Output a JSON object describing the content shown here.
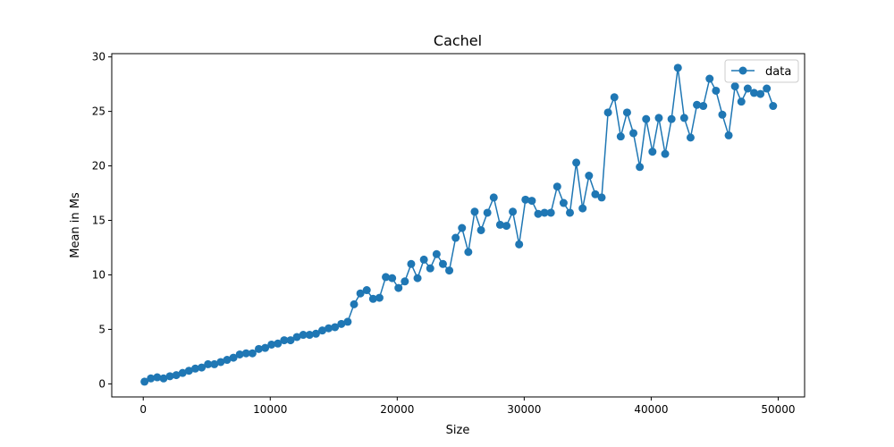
{
  "chart_data": {
    "type": "line",
    "title": "Cachel",
    "xlabel": "Size",
    "ylabel": "Mean in Ms",
    "xlim": [
      -2480,
      52080
    ],
    "ylim": [
      -1.2,
      30.3
    ],
    "xticks": [
      0,
      10000,
      20000,
      30000,
      40000,
      50000
    ],
    "yticks": [
      0,
      5,
      10,
      15,
      20,
      25,
      30
    ],
    "grid": false,
    "legend": {
      "placement": "top-right",
      "entries": [
        "data"
      ]
    },
    "series": [
      {
        "name": "data",
        "color": "#1f77b4",
        "marker": "circle",
        "x": [
          100,
          600,
          1100,
          1600,
          2100,
          2600,
          3100,
          3600,
          4100,
          4600,
          5100,
          5600,
          6100,
          6600,
          7100,
          7600,
          8100,
          8600,
          9100,
          9600,
          10100,
          10600,
          11100,
          11600,
          12100,
          12600,
          13100,
          13600,
          14100,
          14600,
          15100,
          15600,
          16100,
          16600,
          17100,
          17600,
          18100,
          18600,
          19100,
          19600,
          20100,
          20600,
          21100,
          21600,
          22100,
          22600,
          23100,
          23600,
          24100,
          24600,
          25100,
          25600,
          26100,
          26600,
          27100,
          27600,
          28100,
          28600,
          29100,
          29600,
          30100,
          30600,
          31100,
          31600,
          32100,
          32600,
          33100,
          33600,
          34100,
          34600,
          35100,
          35600,
          36100,
          36600,
          37100,
          37600,
          38100,
          38600,
          39100,
          39600,
          40100,
          40600,
          41100,
          41600,
          42100,
          42600,
          43100,
          43600,
          44100,
          44600,
          45100,
          45600,
          46100,
          46600,
          47100,
          47600,
          48100,
          48600,
          49100,
          49600
        ],
        "y": [
          0.2,
          0.5,
          0.6,
          0.5,
          0.7,
          0.8,
          1.0,
          1.2,
          1.4,
          1.5,
          1.8,
          1.8,
          2.0,
          2.2,
          2.4,
          2.7,
          2.8,
          2.8,
          3.2,
          3.3,
          3.6,
          3.7,
          4.0,
          4.0,
          4.3,
          4.5,
          4.5,
          4.6,
          4.9,
          5.1,
          5.2,
          5.5,
          5.7,
          7.3,
          8.3,
          8.6,
          7.8,
          7.9,
          9.8,
          9.7,
          8.8,
          9.4,
          11.0,
          9.7,
          11.4,
          10.6,
          11.9,
          11.0,
          10.4,
          13.4,
          14.3,
          12.1,
          15.8,
          14.1,
          15.7,
          17.1,
          14.6,
          14.5,
          15.8,
          12.8,
          16.9,
          16.8,
          15.6,
          15.7,
          15.7,
          18.1,
          16.6,
          15.7,
          20.3,
          16.1,
          19.1,
          17.4,
          17.1,
          24.9,
          26.3,
          22.7,
          24.9,
          23.0,
          19.9,
          24.3,
          21.3,
          24.4,
          21.1,
          24.3,
          29.0,
          24.4,
          22.6,
          25.6,
          25.5,
          28.0,
          26.9,
          24.7,
          22.8,
          27.3,
          25.9,
          27.1,
          26.7,
          26.6,
          27.1,
          25.5
        ]
      }
    ]
  }
}
